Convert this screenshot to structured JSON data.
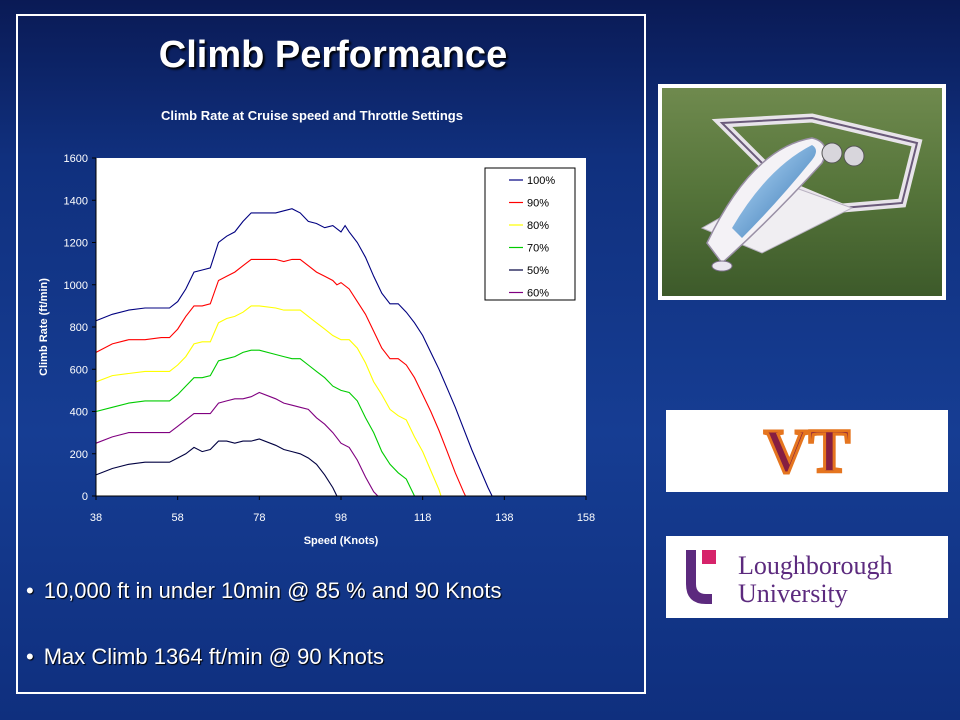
{
  "slide": {
    "title": "Climb Performance",
    "bullets": [
      "10,000 ft in under 10min @ 85 % and 90 Knots",
      "Max Climb 1364 ft/min @ 90 Knots"
    ],
    "bullet_glyph": "•"
  },
  "logos": {
    "vt": "VT",
    "loughborough": [
      "Loughborough",
      "University"
    ]
  },
  "colors": {
    "background": "#163d93",
    "series": {
      "100%": "#000080",
      "90%": "#ff0000",
      "80%": "#ffff00",
      "70%": "#00cc00",
      "50%": "#000040",
      "60%": "#800080"
    },
    "vt_maroon": "#861f41",
    "vt_orange": "#e5751f",
    "lboro_purple": "#5c2a7e",
    "lboro_magenta": "#d6236a"
  },
  "chart_data": {
    "type": "line",
    "title": "Climb Rate at Cruise speed and Throttle Settings",
    "xlabel": "Speed (Knots)",
    "ylabel": "Climb Rate (ft/min)",
    "xlim": [
      38,
      158
    ],
    "ylim": [
      0,
      1600
    ],
    "xticks": [
      38,
      58,
      78,
      98,
      118,
      138,
      158
    ],
    "yticks": [
      0,
      200,
      400,
      600,
      800,
      1000,
      1200,
      1400,
      1600
    ],
    "legend_position": "top-right",
    "series": [
      {
        "name": "100%",
        "points": [
          [
            38,
            830
          ],
          [
            42,
            860
          ],
          [
            46,
            880
          ],
          [
            50,
            890
          ],
          [
            54,
            890
          ],
          [
            56,
            890
          ],
          [
            58,
            920
          ],
          [
            60,
            980
          ],
          [
            62,
            1060
          ],
          [
            64,
            1070
          ],
          [
            66,
            1080
          ],
          [
            68,
            1200
          ],
          [
            70,
            1230
          ],
          [
            72,
            1250
          ],
          [
            74,
            1300
          ],
          [
            76,
            1340
          ],
          [
            78,
            1340
          ],
          [
            82,
            1340
          ],
          [
            84,
            1350
          ],
          [
            86,
            1360
          ],
          [
            88,
            1340
          ],
          [
            90,
            1300
          ],
          [
            92,
            1290
          ],
          [
            94,
            1270
          ],
          [
            96,
            1280
          ],
          [
            98,
            1250
          ],
          [
            99,
            1280
          ],
          [
            100,
            1250
          ],
          [
            102,
            1200
          ],
          [
            104,
            1130
          ],
          [
            106,
            1040
          ],
          [
            108,
            960
          ],
          [
            110,
            910
          ],
          [
            112,
            910
          ],
          [
            114,
            870
          ],
          [
            116,
            820
          ],
          [
            118,
            760
          ],
          [
            120,
            680
          ],
          [
            122,
            600
          ],
          [
            124,
            510
          ],
          [
            126,
            420
          ],
          [
            128,
            320
          ],
          [
            130,
            220
          ],
          [
            132,
            130
          ],
          [
            134,
            40
          ],
          [
            135,
            0
          ]
        ]
      },
      {
        "name": "90%",
        "points": [
          [
            38,
            680
          ],
          [
            42,
            720
          ],
          [
            46,
            740
          ],
          [
            50,
            740
          ],
          [
            54,
            750
          ],
          [
            56,
            750
          ],
          [
            58,
            790
          ],
          [
            60,
            850
          ],
          [
            62,
            900
          ],
          [
            64,
            900
          ],
          [
            66,
            910
          ],
          [
            68,
            1020
          ],
          [
            70,
            1040
          ],
          [
            72,
            1060
          ],
          [
            74,
            1090
          ],
          [
            76,
            1120
          ],
          [
            78,
            1120
          ],
          [
            82,
            1120
          ],
          [
            84,
            1110
          ],
          [
            86,
            1120
          ],
          [
            88,
            1120
          ],
          [
            90,
            1090
          ],
          [
            92,
            1060
          ],
          [
            94,
            1040
          ],
          [
            96,
            1020
          ],
          [
            97,
            1000
          ],
          [
            98,
            1010
          ],
          [
            100,
            980
          ],
          [
            102,
            920
          ],
          [
            104,
            860
          ],
          [
            106,
            780
          ],
          [
            108,
            700
          ],
          [
            110,
            650
          ],
          [
            112,
            650
          ],
          [
            114,
            620
          ],
          [
            116,
            560
          ],
          [
            118,
            480
          ],
          [
            120,
            400
          ],
          [
            122,
            310
          ],
          [
            124,
            210
          ],
          [
            126,
            110
          ],
          [
            128,
            20
          ],
          [
            128.5,
            0
          ]
        ]
      },
      {
        "name": "80%",
        "points": [
          [
            38,
            540
          ],
          [
            42,
            570
          ],
          [
            46,
            580
          ],
          [
            50,
            590
          ],
          [
            54,
            590
          ],
          [
            56,
            590
          ],
          [
            58,
            620
          ],
          [
            60,
            660
          ],
          [
            62,
            720
          ],
          [
            64,
            730
          ],
          [
            66,
            730
          ],
          [
            68,
            820
          ],
          [
            70,
            840
          ],
          [
            72,
            850
          ],
          [
            74,
            870
          ],
          [
            76,
            900
          ],
          [
            78,
            900
          ],
          [
            82,
            890
          ],
          [
            84,
            880
          ],
          [
            86,
            880
          ],
          [
            88,
            880
          ],
          [
            90,
            850
          ],
          [
            92,
            820
          ],
          [
            94,
            790
          ],
          [
            96,
            760
          ],
          [
            98,
            740
          ],
          [
            100,
            740
          ],
          [
            102,
            700
          ],
          [
            104,
            630
          ],
          [
            106,
            540
          ],
          [
            108,
            480
          ],
          [
            110,
            410
          ],
          [
            112,
            380
          ],
          [
            114,
            360
          ],
          [
            116,
            280
          ],
          [
            118,
            210
          ],
          [
            120,
            120
          ],
          [
            122,
            30
          ],
          [
            122.5,
            0
          ]
        ]
      },
      {
        "name": "70%",
        "points": [
          [
            38,
            400
          ],
          [
            42,
            420
          ],
          [
            46,
            440
          ],
          [
            50,
            450
          ],
          [
            54,
            450
          ],
          [
            56,
            450
          ],
          [
            58,
            480
          ],
          [
            60,
            520
          ],
          [
            62,
            560
          ],
          [
            64,
            560
          ],
          [
            66,
            570
          ],
          [
            68,
            640
          ],
          [
            70,
            650
          ],
          [
            72,
            660
          ],
          [
            74,
            680
          ],
          [
            76,
            690
          ],
          [
            78,
            690
          ],
          [
            82,
            670
          ],
          [
            84,
            660
          ],
          [
            86,
            650
          ],
          [
            88,
            650
          ],
          [
            90,
            620
          ],
          [
            92,
            590
          ],
          [
            94,
            560
          ],
          [
            96,
            520
          ],
          [
            98,
            500
          ],
          [
            100,
            490
          ],
          [
            102,
            450
          ],
          [
            104,
            370
          ],
          [
            106,
            300
          ],
          [
            108,
            210
          ],
          [
            110,
            150
          ],
          [
            112,
            110
          ],
          [
            114,
            80
          ],
          [
            115,
            40
          ],
          [
            116,
            0
          ]
        ]
      },
      {
        "name": "50%",
        "points": [
          [
            38,
            100
          ],
          [
            42,
            130
          ],
          [
            46,
            150
          ],
          [
            50,
            160
          ],
          [
            54,
            160
          ],
          [
            56,
            160
          ],
          [
            58,
            180
          ],
          [
            60,
            200
          ],
          [
            62,
            230
          ],
          [
            64,
            210
          ],
          [
            66,
            220
          ],
          [
            68,
            260
          ],
          [
            70,
            260
          ],
          [
            72,
            250
          ],
          [
            74,
            260
          ],
          [
            76,
            260
          ],
          [
            78,
            270
          ],
          [
            82,
            240
          ],
          [
            84,
            220
          ],
          [
            86,
            210
          ],
          [
            88,
            200
          ],
          [
            90,
            180
          ],
          [
            92,
            150
          ],
          [
            94,
            100
          ],
          [
            96,
            40
          ],
          [
            97,
            0
          ]
        ]
      },
      {
        "name": "60%",
        "points": [
          [
            38,
            250
          ],
          [
            42,
            280
          ],
          [
            46,
            300
          ],
          [
            50,
            300
          ],
          [
            54,
            300
          ],
          [
            56,
            300
          ],
          [
            58,
            330
          ],
          [
            60,
            360
          ],
          [
            62,
            390
          ],
          [
            64,
            390
          ],
          [
            66,
            390
          ],
          [
            68,
            440
          ],
          [
            70,
            450
          ],
          [
            72,
            460
          ],
          [
            74,
            460
          ],
          [
            76,
            470
          ],
          [
            78,
            490
          ],
          [
            82,
            460
          ],
          [
            84,
            440
          ],
          [
            86,
            430
          ],
          [
            88,
            420
          ],
          [
            90,
            410
          ],
          [
            92,
            370
          ],
          [
            94,
            340
          ],
          [
            96,
            300
          ],
          [
            98,
            250
          ],
          [
            100,
            230
          ],
          [
            102,
            170
          ],
          [
            104,
            90
          ],
          [
            106,
            20
          ],
          [
            107,
            0
          ]
        ]
      }
    ]
  }
}
